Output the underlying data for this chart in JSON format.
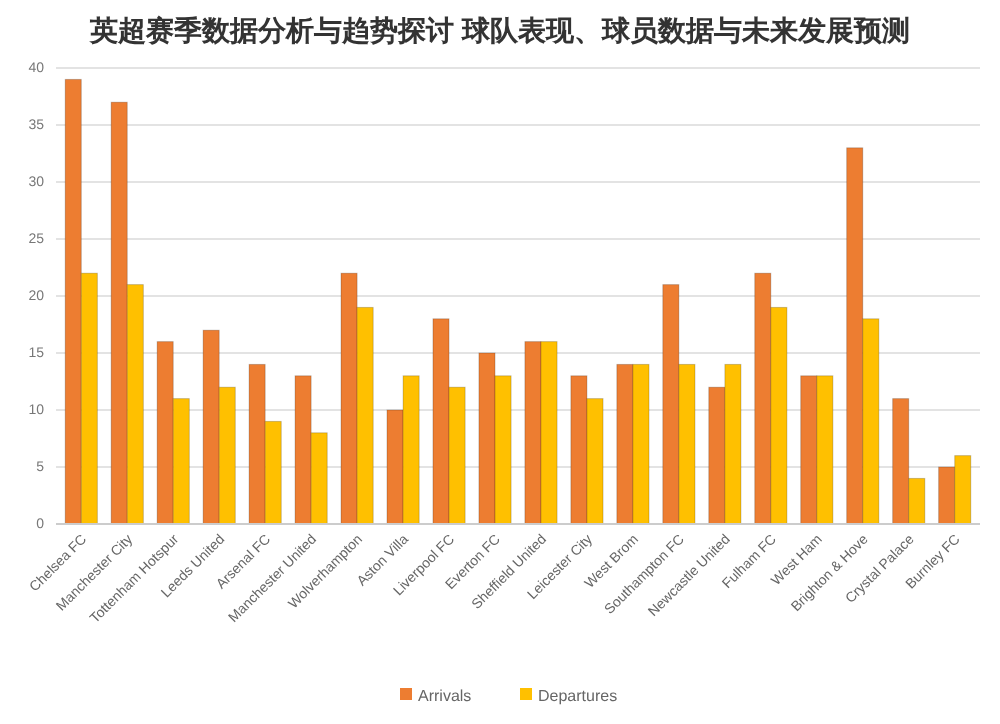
{
  "chart_data": {
    "type": "bar",
    "title": "英超赛季数据分析与趋势探讨 球队表现、球员数据与未来发展预测",
    "categories": [
      "Chelsea FC",
      "Manchester City",
      "Tottenham Hotspur",
      "Leeds United",
      "Arsenal FC",
      "Manchester United",
      "Wolverhampton",
      "Aston Villa",
      "Liverpool FC",
      "Everton FC",
      "Sheffield United",
      "Leicester City",
      "West Brom",
      "Southampton FC",
      "Newcastle United",
      "Fulham FC",
      "West Ham",
      "Brighton & Hove",
      "Crystal Palace",
      "Burnley FC"
    ],
    "series": [
      {
        "name": "Arrivals",
        "color": "#ed7d31",
        "values": [
          39,
          37,
          16,
          17,
          14,
          13,
          22,
          10,
          18,
          15,
          16,
          13,
          14,
          21,
          12,
          22,
          13,
          33,
          11,
          5
        ]
      },
      {
        "name": "Departures",
        "color": "#ffc000",
        "values": [
          22,
          21,
          11,
          12,
          9,
          8,
          19,
          13,
          12,
          13,
          16,
          11,
          14,
          14,
          14,
          19,
          13,
          18,
          4,
          6
        ]
      }
    ],
    "ylim": [
      0,
      40
    ],
    "yticks": [
      0,
      5,
      10,
      15,
      20,
      25,
      30,
      35,
      40
    ],
    "grid": "y",
    "legend": "bottom"
  }
}
